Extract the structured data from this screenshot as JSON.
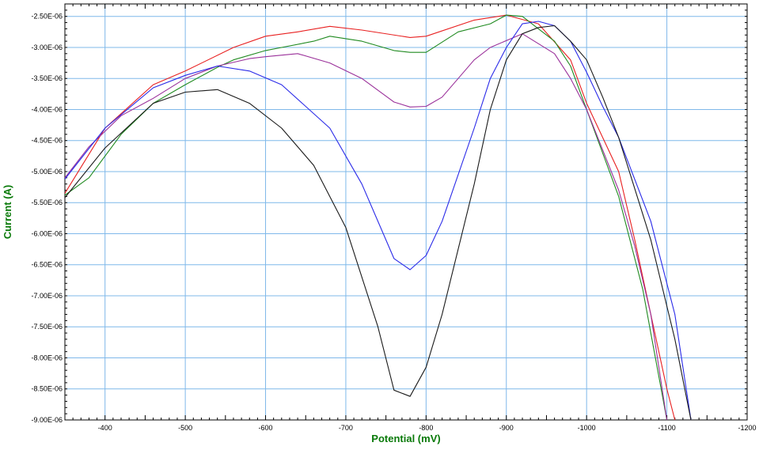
{
  "chart_data": {
    "type": "line",
    "title": "",
    "xlabel": "Potential (mV)",
    "ylabel": "Current (A)",
    "axis_title_color": "#0a7a0a",
    "grid_color": "#7fb8ea",
    "xlim": [
      -350,
      -1200
    ],
    "ylim": [
      -9e-06,
      -2.3e-06
    ],
    "x_ticks": [
      -400,
      -500,
      -600,
      -700,
      -800,
      -900,
      -1000,
      -1100,
      -1200
    ],
    "x_tick_labels": [
      "-400",
      "-500",
      "-600",
      "-700",
      "-800",
      "-900",
      "-1000",
      "-1100",
      "-1200"
    ],
    "y_ticks": [
      -2.5e-06,
      -3e-06,
      -3.5e-06,
      -4e-06,
      -4.5e-06,
      -5e-06,
      -5.5e-06,
      -6e-06,
      -6.5e-06,
      -7e-06,
      -7.5e-06,
      -8e-06,
      -8.5e-06,
      -9e-06
    ],
    "y_tick_labels": [
      "-2.50E-06",
      "-3.00E-06",
      "-3.50E-06",
      "-4.00E-06",
      "-4.50E-06",
      "-5.00E-06",
      "-5.50E-06",
      "-6.00E-06",
      "-6.50E-06",
      "-7.00E-06",
      "-7.50E-06",
      "-8.00E-06",
      "-8.50E-06",
      "-9.00E-06"
    ],
    "grid": true,
    "series": [
      {
        "color": "#e82020",
        "x": [
          -350,
          -400,
          -460,
          -500,
          -560,
          -600,
          -640,
          -680,
          -720,
          -780,
          -800,
          -860,
          -900,
          -940,
          -980,
          -1000,
          -1040,
          -1060,
          -1080,
          -1100,
          -1110
        ],
        "y": [
          -5.35e-06,
          -4.3e-06,
          -3.6e-06,
          -3.38e-06,
          -3e-06,
          -2.82e-06,
          -2.75e-06,
          -2.66e-06,
          -2.72e-06,
          -2.84e-06,
          -2.82e-06,
          -2.56e-06,
          -2.48e-06,
          -2.62e-06,
          -3.2e-06,
          -3.9e-06,
          -5e-06,
          -6.1e-06,
          -7.3e-06,
          -8.5e-06,
          -9e-06
        ]
      },
      {
        "color": "#208a20",
        "x": [
          -350,
          -380,
          -420,
          -460,
          -500,
          -540,
          -560,
          -600,
          -620,
          -660,
          -680,
          -720,
          -760,
          -780,
          -800,
          -840,
          -880,
          -900,
          -920,
          -940,
          -960,
          -980,
          -1000,
          -1040,
          -1070,
          -1080,
          -1100
        ],
        "y": [
          -5.38e-06,
          -5.1e-06,
          -4.4e-06,
          -3.9e-06,
          -3.6e-06,
          -3.32e-06,
          -3.2e-06,
          -3.05e-06,
          -3e-06,
          -2.9e-06,
          -2.82e-06,
          -2.9e-06,
          -3.05e-06,
          -3.08e-06,
          -3.08e-06,
          -2.75e-06,
          -2.62e-06,
          -2.48e-06,
          -2.5e-06,
          -2.7e-06,
          -2.9e-06,
          -3.3e-06,
          -4e-06,
          -5.4e-06,
          -6.9e-06,
          -7.6e-06,
          -9e-06
        ]
      },
      {
        "color": "#9a309a",
        "x": [
          -350,
          -380,
          -420,
          -460,
          -500,
          -540,
          -580,
          -600,
          -640,
          -680,
          -720,
          -760,
          -780,
          -800,
          -820,
          -860,
          -880,
          -920,
          -960,
          -980,
          -1000,
          -1040,
          -1060,
          -1080,
          -1100
        ],
        "y": [
          -5.1e-06,
          -4.6e-06,
          -4.1e-06,
          -3.82e-06,
          -3.5e-06,
          -3.3e-06,
          -3.18e-06,
          -3.15e-06,
          -3.1e-06,
          -3.25e-06,
          -3.5e-06,
          -3.88e-06,
          -3.96e-06,
          -3.95e-06,
          -3.8e-06,
          -3.2e-06,
          -3e-06,
          -2.78e-06,
          -3.1e-06,
          -3.5e-06,
          -4e-06,
          -5.3e-06,
          -6.2e-06,
          -7.3e-06,
          -9e-06
        ]
      },
      {
        "color": "#2a2ae8",
        "x": [
          -350,
          -400,
          -460,
          -500,
          -540,
          -580,
          -620,
          -680,
          -720,
          -760,
          -780,
          -800,
          -820,
          -860,
          -880,
          -900,
          -920,
          -940,
          -960,
          -980,
          -1000,
          -1020,
          -1040,
          -1080,
          -1110,
          -1130
        ],
        "y": [
          -5.12e-06,
          -4.3e-06,
          -3.65e-06,
          -3.45e-06,
          -3.3e-06,
          -3.38e-06,
          -3.6e-06,
          -4.3e-06,
          -5.2e-06,
          -6.4e-06,
          -6.58e-06,
          -6.35e-06,
          -5.8e-06,
          -4.3e-06,
          -3.5e-06,
          -3e-06,
          -2.62e-06,
          -2.58e-06,
          -2.65e-06,
          -2.9e-06,
          -3.4e-06,
          -3.95e-06,
          -4.45e-06,
          -5.8e-06,
          -7.3e-06,
          -9e-06
        ]
      },
      {
        "color": "#1a1a1a",
        "x": [
          -350,
          -400,
          -460,
          -500,
          -540,
          -580,
          -620,
          -660,
          -700,
          -740,
          -760,
          -780,
          -800,
          -820,
          -860,
          -880,
          -900,
          -920,
          -940,
          -960,
          -980,
          -1000,
          -1020,
          -1040,
          -1080,
          -1110,
          -1130
        ],
        "y": [
          -5.42e-06,
          -4.62e-06,
          -3.9e-06,
          -3.72e-06,
          -3.68e-06,
          -3.9e-06,
          -4.3e-06,
          -4.9e-06,
          -5.9e-06,
          -7.5e-06,
          -8.52e-06,
          -8.62e-06,
          -8.15e-06,
          -7.3e-06,
          -5.2e-06,
          -4e-06,
          -3.2e-06,
          -2.78e-06,
          -2.68e-06,
          -2.65e-06,
          -2.9e-06,
          -3.2e-06,
          -3.8e-06,
          -4.45e-06,
          -6.1e-06,
          -7.7e-06,
          -9e-06
        ]
      }
    ]
  }
}
